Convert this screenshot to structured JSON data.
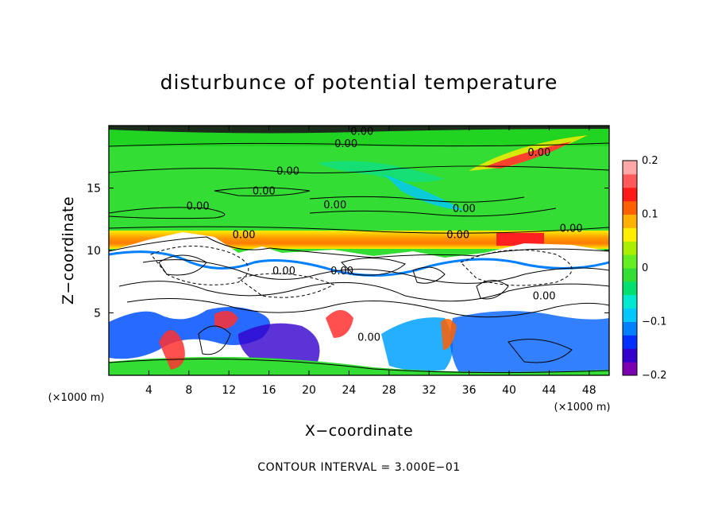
{
  "chart_data": {
    "type": "heatmap",
    "title": "disturbunce of potential temperature",
    "xlabel": "X−coordinate",
    "ylabel": "Z−coordinate",
    "x_unit_left": "(×1000 m)",
    "x_unit_right": "(×1000 m)",
    "xlim": [
      0,
      50
    ],
    "ylim": [
      0,
      20
    ],
    "x_ticks": [
      4,
      8,
      12,
      16,
      20,
      24,
      28,
      32,
      36,
      40,
      44,
      48
    ],
    "x_tick_labels": [
      "4",
      "8",
      "12",
      "16",
      "20",
      "24",
      "28",
      "32",
      "36",
      "40",
      "44",
      "48"
    ],
    "y_ticks": [
      5,
      10,
      15
    ],
    "y_tick_labels": [
      "5",
      "10",
      "15"
    ],
    "colorbar": {
      "range": [
        -0.2,
        0.2
      ],
      "ticks": [
        0.2,
        0.1,
        0,
        -0.1,
        -0.2
      ],
      "tick_labels": [
        "0.2",
        "0.1",
        "0",
        "−0.1",
        "−0.2"
      ],
      "colors": [
        "#7a00b0",
        "#3300cc",
        "#0030ff",
        "#0080ff",
        "#00c8ff",
        "#00e8d0",
        "#00e070",
        "#33dd33",
        "#66ee22",
        "#aaee00",
        "#ffee00",
        "#ffb000",
        "#ff6000",
        "#ff1a1a",
        "#ff5a5a",
        "#ffa8a8"
      ]
    },
    "contour_interval_text": "CONTOUR INTERVAL = 3.000E−01",
    "contour_labels": [
      {
        "text": "0.00",
        "x": 25.3,
        "z": 19.6
      },
      {
        "text": "0.00",
        "x": 23.7,
        "z": 18.6
      },
      {
        "text": "0.00",
        "x": 43.0,
        "z": 17.9
      },
      {
        "text": "0.00",
        "x": 17.9,
        "z": 16.4
      },
      {
        "text": "0.00",
        "x": 15.5,
        "z": 14.8
      },
      {
        "text": "0.00",
        "x": 8.9,
        "z": 13.6
      },
      {
        "text": "0.00",
        "x": 22.6,
        "z": 13.7
      },
      {
        "text": "0.00",
        "x": 35.5,
        "z": 13.4
      },
      {
        "text": "0.00",
        "x": 13.5,
        "z": 11.3
      },
      {
        "text": "0.00",
        "x": 34.9,
        "z": 11.3
      },
      {
        "text": "0.00",
        "x": 46.2,
        "z": 11.8
      },
      {
        "text": "0.00",
        "x": 17.5,
        "z": 8.4
      },
      {
        "text": "0.00",
        "x": 23.3,
        "z": 8.4
      },
      {
        "text": "0.00",
        "x": 43.5,
        "z": 6.4
      },
      {
        "text": "0.00",
        "x": 26.0,
        "z": 3.1
      }
    ],
    "grid": false
  }
}
